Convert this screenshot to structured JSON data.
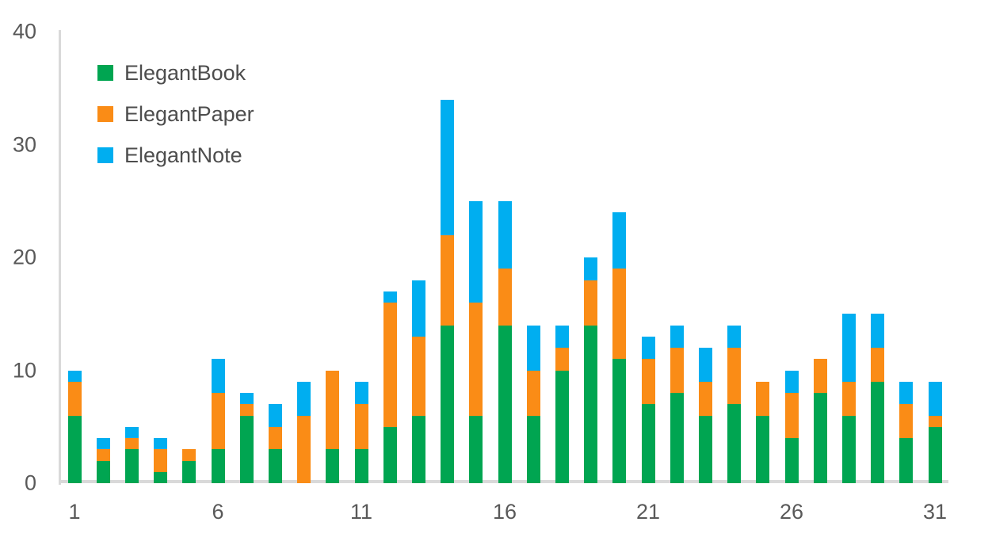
{
  "chart_data": {
    "type": "bar",
    "stacked": true,
    "title": "",
    "xlabel": "",
    "ylabel": "",
    "categories": [
      1,
      2,
      3,
      4,
      5,
      6,
      7,
      8,
      9,
      10,
      11,
      12,
      13,
      14,
      15,
      16,
      17,
      18,
      19,
      20,
      21,
      22,
      23,
      24,
      25,
      26,
      27,
      28,
      29,
      30,
      31
    ],
    "series": [
      {
        "name": "ElegantBook",
        "color": "#00A551",
        "values": [
          6,
          2,
          3,
          1,
          2,
          3,
          6,
          3,
          0,
          3,
          3,
          5,
          6,
          14,
          6,
          14,
          6,
          10,
          14,
          11,
          7,
          8,
          6,
          7,
          6,
          4,
          8,
          6,
          9,
          4,
          5
        ]
      },
      {
        "name": "ElegantPaper",
        "color": "#FA8C16",
        "values": [
          3,
          1,
          1,
          2,
          1,
          5,
          1,
          2,
          6,
          7,
          4,
          11,
          7,
          8,
          10,
          5,
          4,
          2,
          4,
          8,
          4,
          4,
          3,
          5,
          3,
          4,
          3,
          3,
          3,
          3,
          1
        ]
      },
      {
        "name": "ElegantNote",
        "color": "#00AEF0",
        "values": [
          1,
          1,
          1,
          1,
          0,
          3,
          1,
          2,
          3,
          0,
          2,
          1,
          5,
          12,
          9,
          6,
          4,
          2,
          2,
          5,
          2,
          2,
          3,
          2,
          0,
          2,
          0,
          6,
          3,
          2,
          3
        ]
      }
    ],
    "totals": [
      10,
      4,
      5,
      4,
      3,
      11,
      8,
      7,
      9,
      10,
      9,
      17,
      18,
      34,
      25,
      25,
      14,
      14,
      20,
      24,
      13,
      14,
      12,
      14,
      9,
      10,
      11,
      15,
      15,
      9,
      9
    ],
    "ylim": [
      0,
      40
    ],
    "yticks": [
      0,
      10,
      20,
      30,
      40
    ],
    "xtick_labels": [
      1,
      6,
      11,
      16,
      21,
      26,
      31
    ],
    "grid": false,
    "legend_position": "top-left",
    "legend": [
      "ElegantBook",
      "ElegantPaper",
      "ElegantNote"
    ],
    "axis_line_color": "#d9d9d9",
    "tick_text_color": "#595959",
    "legend_text_color": "#4d4d4d",
    "background_color": "#ffffff"
  }
}
